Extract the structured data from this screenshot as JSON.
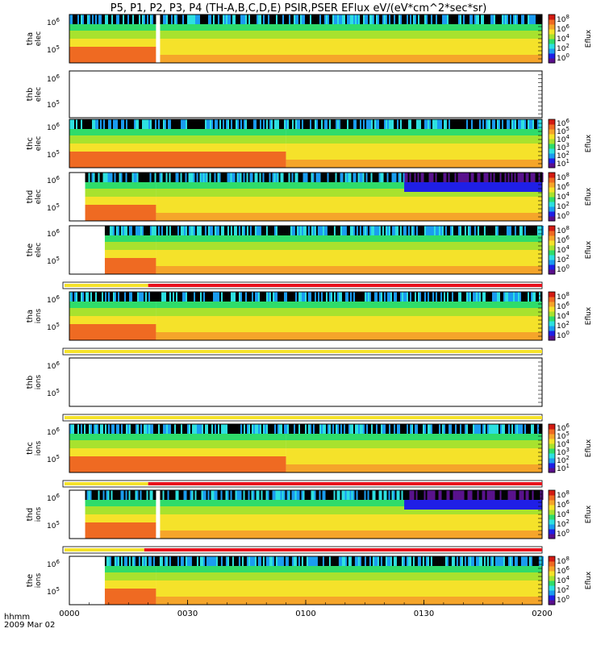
{
  "chart_data": {
    "type": "heatmap",
    "title": "P5, P1, P2, P3, P4 (TH-A,B,C,D,E) PSIR,PSER EFlux eV/(eV*cm^2*sec*sr)",
    "time_axis": {
      "label_line1": "hhmm",
      "label_line2": "2009 Mar 02",
      "range": [
        "0000",
        "0200"
      ],
      "ticks": [
        "0000",
        "0030",
        "0100",
        "0130",
        "0200"
      ]
    },
    "colorbar": {
      "label": "Eflux",
      "standard_ticks": [
        "10^0",
        "10^2",
        "10^4",
        "10^6",
        "10^8"
      ],
      "compact_ticks": [
        "10^1",
        "10^2",
        "10^3",
        "10^4",
        "10^5",
        "10^6"
      ]
    },
    "panels": [
      {
        "probe": "tha",
        "species": "elec",
        "y_ticks": [
          "10^6",
          "10^5"
        ],
        "colorbar": "standard",
        "empty": false,
        "start": "0000",
        "gap": "0022",
        "level_change": "0022",
        "quality_bar_after": false
      },
      {
        "probe": "thb",
        "species": "elec",
        "y_ticks": [
          "10^6",
          "10^5"
        ],
        "colorbar": "none",
        "empty": true,
        "quality_bar_after": false
      },
      {
        "probe": "thc",
        "species": "elec",
        "y_ticks": [
          "10^6",
          "10^5"
        ],
        "colorbar": "compact",
        "empty": false,
        "start": "0000",
        "level_change": "0055",
        "quality_bar_after": false
      },
      {
        "probe": "thd",
        "species": "elec",
        "y_ticks": [
          "10^6",
          "10^5"
        ],
        "colorbar": "standard",
        "empty": false,
        "start": "0004",
        "level_change": "0022",
        "quiet_from": "0125",
        "quality_bar_after": false
      },
      {
        "probe": "the",
        "species": "elec",
        "y_ticks": [
          "10^6",
          "10^5"
        ],
        "colorbar": "standard",
        "empty": false,
        "start": "0009",
        "level_change": "0022",
        "quality_bar_after": true,
        "quality_yellow_until": "0020"
      },
      {
        "probe": "tha",
        "species": "ions",
        "y_ticks": [
          "10^6",
          "10^5"
        ],
        "colorbar": "standard",
        "empty": false,
        "start": "0000",
        "level_change": "0022",
        "quality_bar_after": true,
        "quality_yellow_until": "0200"
      },
      {
        "probe": "thb",
        "species": "ions",
        "y_ticks": [
          "10^6",
          "10^5"
        ],
        "colorbar": "none",
        "empty": true,
        "quality_bar_after": true,
        "quality_yellow_until": "0200"
      },
      {
        "probe": "thc",
        "species": "ions",
        "y_ticks": [
          "10^6",
          "10^5"
        ],
        "colorbar": "compact",
        "empty": false,
        "start": "0000",
        "level_change": "0055",
        "quality_bar_after": true,
        "quality_yellow_until": "0020"
      },
      {
        "probe": "thd",
        "species": "ions",
        "y_ticks": [
          "10^6",
          "10^5"
        ],
        "colorbar": "standard",
        "empty": false,
        "start": "0004",
        "gap": "0022",
        "level_change": "0022",
        "quiet_from": "0125",
        "quality_bar_after": true,
        "quality_yellow_until": "0019"
      },
      {
        "probe": "the",
        "species": "ions",
        "y_ticks": [
          "10^6",
          "10^5"
        ],
        "colorbar": "standard",
        "empty": false,
        "start": "0009",
        "level_change": "0022",
        "quality_bar_after": false
      }
    ]
  },
  "colors": {
    "scale": [
      "#5a0f8c",
      "#1f1fe6",
      "#1a9bf0",
      "#2de0e0",
      "#2fdc6a",
      "#a8e22e",
      "#f5e22a",
      "#f5a52a",
      "#ef6a22",
      "#d21a12"
    ],
    "quality_good": "#f5e22a",
    "quality_bad": "#e8101c"
  }
}
